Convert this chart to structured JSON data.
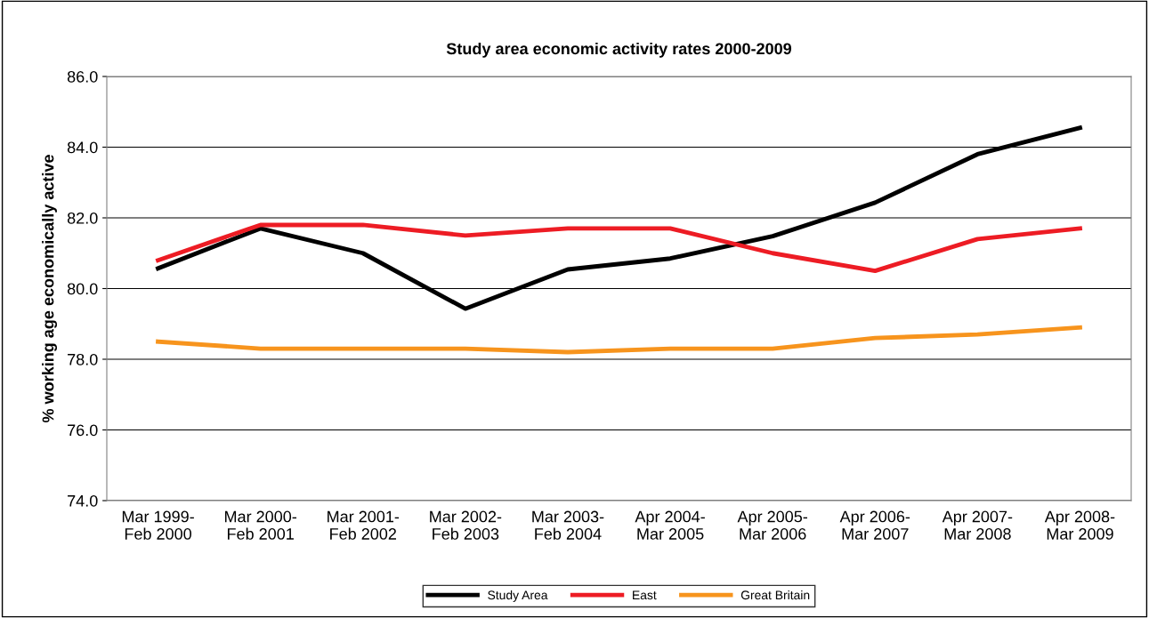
{
  "chart_data": {
    "type": "line",
    "title": "Study area economic activity rates 2000-2009",
    "ylabel": "% working age economically active",
    "categories": [
      "Mar 1999-\nFeb 2000",
      "Mar 2000-\nFeb 2001",
      "Mar 2001-\nFeb 2002",
      "Mar 2002-\nFeb 2003",
      "Mar 2003-\nFeb 2004",
      "Apr 2004-\nMar 2005",
      "Apr 2005-\nMar 2006",
      "Apr 2006-\nMar 2007",
      "Apr 2007-\nMar 2008",
      "Apr 2008-\nMar 2009"
    ],
    "series": [
      {
        "name": "Study Area",
        "color": "#000000",
        "values": [
          80.57,
          81.7,
          81.0,
          79.43,
          80.54,
          80.85,
          81.48,
          82.43,
          83.8,
          84.55
        ]
      },
      {
        "name": "East",
        "color": "#ed1c24",
        "values": [
          80.8,
          81.8,
          81.8,
          81.5,
          81.7,
          81.7,
          81.0,
          80.5,
          81.4,
          81.7
        ]
      },
      {
        "name": "Great Britain",
        "color": "#f7941d",
        "values": [
          78.5,
          78.3,
          78.3,
          78.3,
          78.2,
          78.3,
          78.3,
          78.6,
          78.7,
          78.9
        ]
      }
    ],
    "ylim": [
      74,
      86
    ],
    "yticks": [
      {
        "value": 74,
        "label": "74.0"
      },
      {
        "value": 76,
        "label": "76.0"
      },
      {
        "value": 78,
        "label": "78.0"
      },
      {
        "value": 80,
        "label": "80.0"
      },
      {
        "value": 82,
        "label": "82.0"
      },
      {
        "value": 84,
        "label": "84.0"
      },
      {
        "value": 86,
        "label": "86.0"
      }
    ],
    "grid": "y",
    "legend": "bottom",
    "marker": "none",
    "line_style": "solid"
  }
}
